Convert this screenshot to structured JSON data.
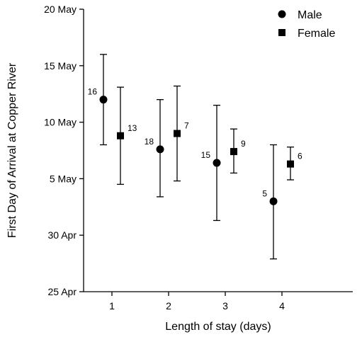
{
  "chart_data": {
    "type": "scatter",
    "xlabel": "Length of stay (days)",
    "ylabel": "First Day of Arrival at Copper River",
    "categories": [
      "1",
      "2",
      "3",
      "4"
    ],
    "y_ticks": [
      {
        "label": "25 Apr",
        "value": 0
      },
      {
        "label": "30 Apr",
        "value": 5
      },
      {
        "label": "5 May",
        "value": 10
      },
      {
        "label": "10 May",
        "value": 15
      },
      {
        "label": "15 May",
        "value": 20
      },
      {
        "label": "20 May",
        "value": 25
      }
    ],
    "ylim": [
      0,
      25
    ],
    "legend_position": "top-right",
    "grid": false,
    "series": [
      {
        "name": "Male",
        "marker": "circle",
        "points": [
          {
            "category": "1",
            "mean": "12 May",
            "low": "8 May",
            "high": "16 May",
            "n": "16"
          },
          {
            "category": "2",
            "mean": "7.6 May",
            "low": "3.4 May",
            "high": "12 May",
            "n": "18"
          },
          {
            "category": "3",
            "mean": "6.4 May",
            "low": "1.3 May",
            "high": "11.5 May",
            "n": "15"
          },
          {
            "category": "4",
            "mean": "3 May",
            "low": "27.9 Apr",
            "high": "8 May",
            "n": "5"
          }
        ]
      },
      {
        "name": "Female",
        "marker": "square",
        "points": [
          {
            "category": "1",
            "mean": "8.8 May",
            "low": "4.5 May",
            "high": "13.1 May",
            "n": "13"
          },
          {
            "category": "2",
            "mean": "9 May",
            "low": "4.8 May",
            "high": "13.2 May",
            "n": "7"
          },
          {
            "category": "3",
            "mean": "7.4 May",
            "low": "5.5 May",
            "high": "9.4 May",
            "n": "9"
          },
          {
            "category": "4",
            "mean": "6.3 May",
            "low": "4.9 May",
            "high": "7.8 May",
            "n": "6"
          }
        ]
      }
    ]
  }
}
